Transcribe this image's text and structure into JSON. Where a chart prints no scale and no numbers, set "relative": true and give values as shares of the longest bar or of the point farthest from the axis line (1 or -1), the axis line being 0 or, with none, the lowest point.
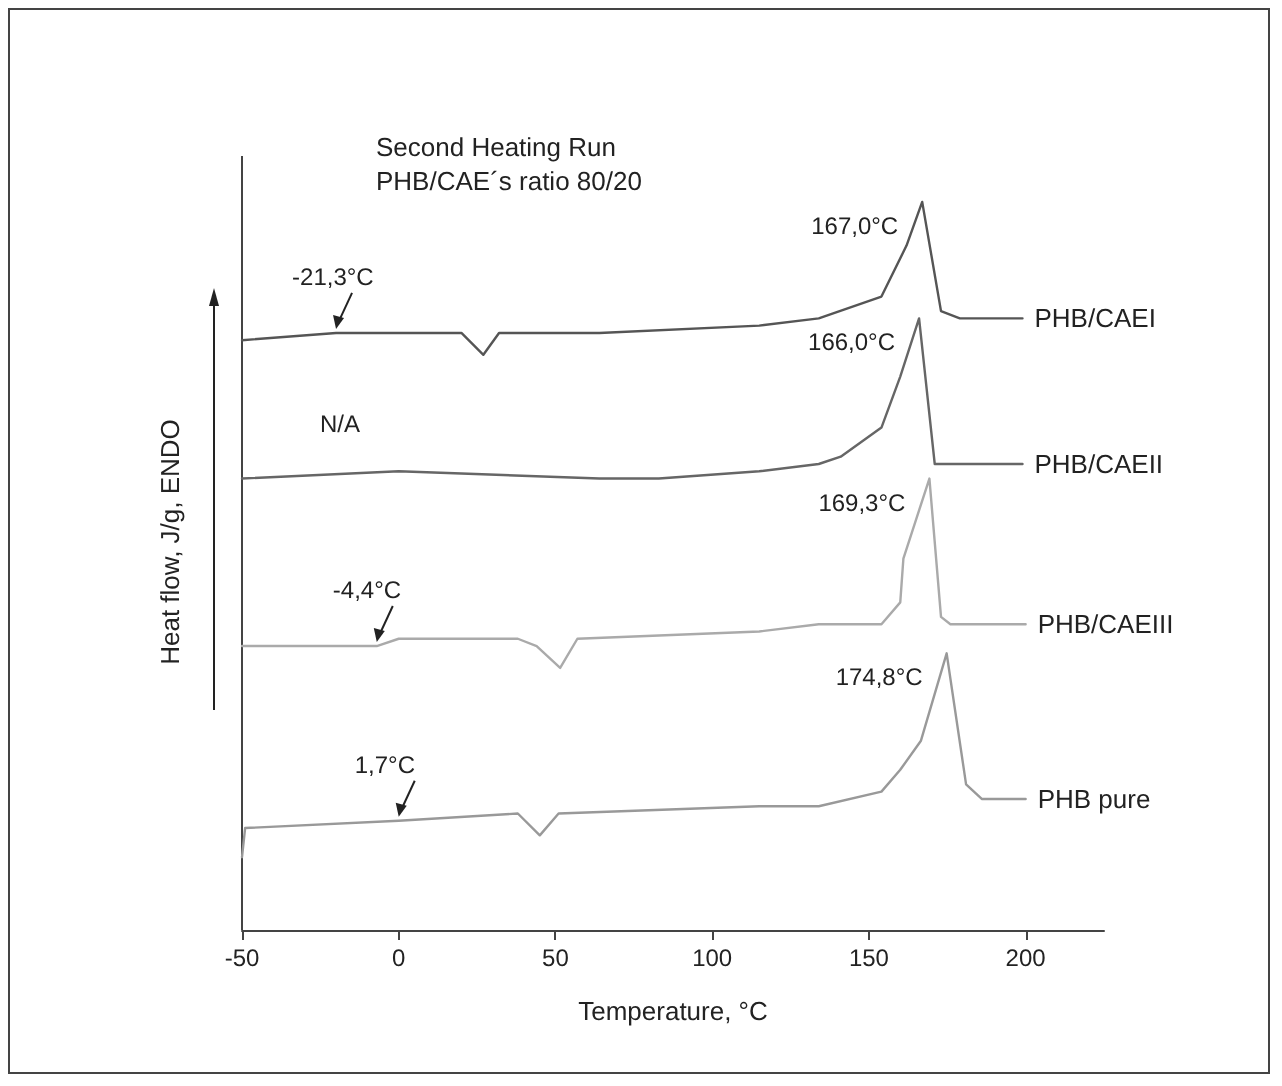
{
  "chart_data": {
    "type": "line",
    "title": "Second Heating Run",
    "subtitle": "PHB/CAE´s ratio 80/20",
    "xlabel": "Temperature, °C",
    "ylabel": "Heat flow, J/g, ENDO",
    "relative": true,
    "marker": "none",
    "line_style": "solid",
    "xlim": [
      -50,
      225
    ],
    "xticks": [
      -50,
      0,
      50,
      100,
      150,
      200
    ],
    "series": [
      {
        "name": "PHB/CAEI",
        "color": "#555555",
        "x": [
          -50,
          -20,
          20,
          27,
          32,
          64,
          115,
          134,
          154,
          162,
          167,
          173,
          179,
          199
        ],
        "values": [
          0.81,
          0.82,
          0.82,
          0.79,
          0.82,
          0.82,
          0.83,
          0.84,
          0.87,
          0.94,
          1.0,
          0.85,
          0.84,
          0.84
        ]
      },
      {
        "name": "PHB/CAEII",
        "color": "#666666",
        "x": [
          -50,
          0,
          64,
          83,
          115,
          134,
          141,
          154,
          160,
          166,
          171,
          199
        ],
        "values": [
          0.62,
          0.63,
          0.62,
          0.62,
          0.63,
          0.64,
          0.65,
          0.69,
          0.76,
          0.84,
          0.64,
          0.64
        ]
      },
      {
        "name": "PHB/CAEIII",
        "color": "#aaaaaa",
        "x": [
          -50,
          -7,
          0,
          38,
          44,
          51.5,
          57,
          115,
          134,
          154,
          160,
          161,
          169.3,
          173,
          176,
          200
        ],
        "values": [
          0.39,
          0.39,
          0.4,
          0.4,
          0.39,
          0.36,
          0.4,
          0.41,
          0.42,
          0.42,
          0.45,
          0.51,
          0.62,
          0.43,
          0.42,
          0.42
        ]
      },
      {
        "name": "PHB pure",
        "color": "#999999",
        "x": [
          -50,
          -49,
          0,
          38,
          45,
          51,
          115,
          134,
          154,
          160,
          166.6,
          174.8,
          181,
          186,
          200
        ],
        "values": [
          0.1,
          0.14,
          0.15,
          0.16,
          0.13,
          0.16,
          0.17,
          0.17,
          0.19,
          0.22,
          0.26,
          0.38,
          0.2,
          0.18,
          0.18
        ]
      }
    ],
    "annotations": [
      {
        "text": "167,0°C",
        "x": 167,
        "y": 1.0
      },
      {
        "text": "166,0°C",
        "x": 166,
        "y": 0.84
      },
      {
        "text": "169,3°C",
        "x": 169.3,
        "y": 0.62
      },
      {
        "text": "174,8°C",
        "x": 174.8,
        "y": 0.38
      },
      {
        "text": "-21,3°C",
        "x": -20,
        "y": 0.82
      },
      {
        "text": "-4,4°C",
        "x": -7,
        "y": 0.39
      },
      {
        "text": "1,7°C",
        "x": 0,
        "y": 0.15
      },
      "N/A"
    ]
  }
}
